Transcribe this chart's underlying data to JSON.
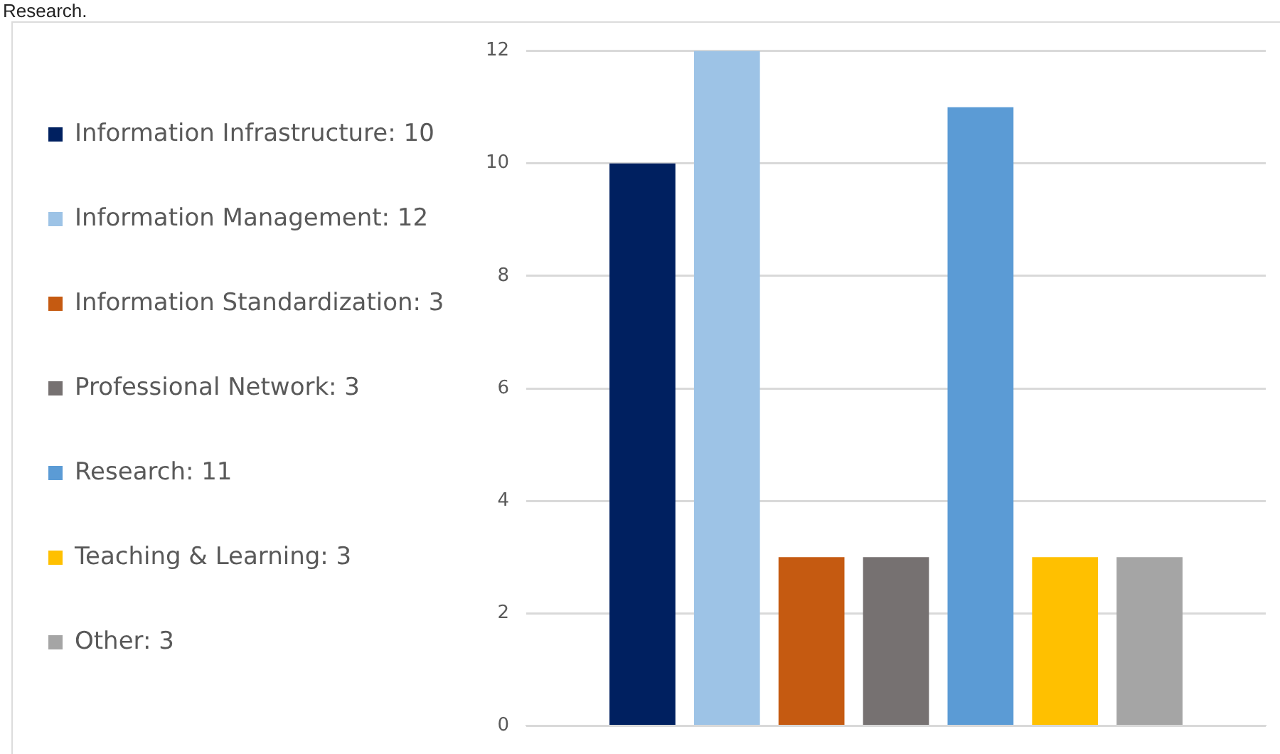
{
  "chart_data": {
    "type": "bar",
    "annotations": [
      "Research."
    ],
    "categories": [
      null
    ],
    "series": [
      {
        "name": "Information Infrastructure: 10",
        "color": "#002060",
        "values": [
          10
        ]
      },
      {
        "name": "Information Management: 12",
        "color": "#9dc3e6",
        "values": [
          12
        ]
      },
      {
        "name": "Information Standardization: 3",
        "color": "#c55a11",
        "values": [
          3
        ]
      },
      {
        "name": "Professional Network: 3",
        "color": "#767171",
        "values": [
          3
        ]
      },
      {
        "name": "Research: 11",
        "color": "#5b9bd5",
        "values": [
          11
        ]
      },
      {
        "name": "Teaching & Learning: 3",
        "color": "#ffc000",
        "values": [
          3
        ]
      },
      {
        "name": "Other: 3",
        "color": "#a5a5a5",
        "values": [
          3
        ]
      }
    ],
    "ylim": [
      0,
      12
    ],
    "yticks": [
      0,
      2,
      4,
      6,
      8,
      10,
      12
    ],
    "grid": "y",
    "legend": "left",
    "tick_labels": "y"
  }
}
